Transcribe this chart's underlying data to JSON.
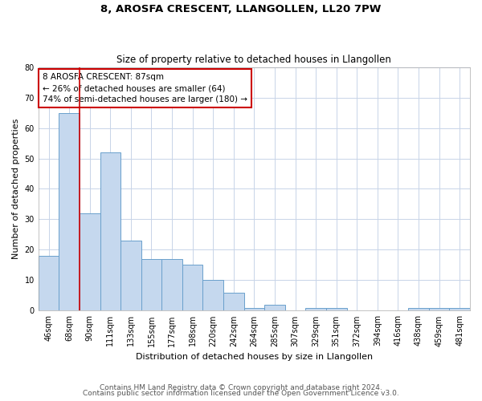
{
  "title": "8, AROSFA CRESCENT, LLANGOLLEN, LL20 7PW",
  "subtitle": "Size of property relative to detached houses in Llangollen",
  "xlabel": "Distribution of detached houses by size in Llangollen",
  "ylabel": "Number of detached properties",
  "categories": [
    "46sqm",
    "68sqm",
    "90sqm",
    "111sqm",
    "133sqm",
    "155sqm",
    "177sqm",
    "198sqm",
    "220sqm",
    "242sqm",
    "264sqm",
    "285sqm",
    "307sqm",
    "329sqm",
    "351sqm",
    "372sqm",
    "394sqm",
    "416sqm",
    "438sqm",
    "459sqm",
    "481sqm"
  ],
  "values": [
    18,
    65,
    32,
    52,
    23,
    17,
    17,
    15,
    10,
    6,
    1,
    2,
    0,
    1,
    1,
    0,
    0,
    0,
    1,
    1,
    1
  ],
  "bar_color": "#c5d8ee",
  "bar_edge_color": "#6aa0cc",
  "marker_color": "#cc0000",
  "annotation_text": "8 AROSFA CRESCENT: 87sqm\n← 26% of detached houses are smaller (64)\n74% of semi-detached houses are larger (180) →",
  "annotation_box_color": "#ffffff",
  "annotation_box_edge": "#cc0000",
  "ylim": [
    0,
    80
  ],
  "yticks": [
    0,
    10,
    20,
    30,
    40,
    50,
    60,
    70,
    80
  ],
  "footer1": "Contains HM Land Registry data © Crown copyright and database right 2024.",
  "footer2": "Contains public sector information licensed under the Open Government Licence v3.0.",
  "bg_color": "#ffffff",
  "grid_color": "#c8d4e8",
  "title_fontsize": 9.5,
  "subtitle_fontsize": 8.5,
  "axis_label_fontsize": 8,
  "tick_fontsize": 7,
  "annotation_fontsize": 7.5,
  "footer_fontsize": 6.5
}
